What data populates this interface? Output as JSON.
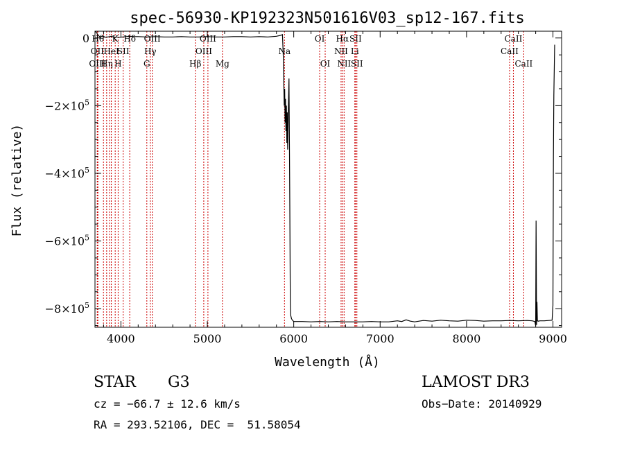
{
  "chart_data": {
    "type": "line",
    "title": "spec-56930-KP192323N501616V03_sp12-167.fits",
    "xlabel": "Wavelength (Å)",
    "ylabel": "Flux (relative)",
    "xlim": [
      3700,
      9100
    ],
    "ylim": [
      -855000,
      20000
    ],
    "x_ticks": [
      4000,
      5000,
      6000,
      7000,
      8000,
      9000
    ],
    "x_tick_labels": [
      "4000",
      "5000",
      "6000",
      "7000",
      "8000",
      "9000"
    ],
    "y_ticks": [
      0,
      -200000,
      -400000,
      -600000,
      -800000
    ],
    "y_tick_labels": [
      {
        "mant": "0",
        "exp": ""
      },
      {
        "mant": "−2×10",
        "exp": "5"
      },
      {
        "mant": "−4×10",
        "exp": "5"
      },
      {
        "mant": "−6×10",
        "exp": "5"
      },
      {
        "mant": "−8×10",
        "exp": "5"
      }
    ],
    "grid": false,
    "line_color": "#000000",
    "marker_color": "#cc0000",
    "series": [
      {
        "x": [
          3700,
          3710,
          3720,
          3735,
          3750,
          3760,
          3775,
          3790,
          3800,
          3815,
          3830,
          3850,
          3870,
          3890,
          3910,
          3930,
          3950,
          3980,
          4020,
          4060,
          4100,
          4150,
          4200,
          4300,
          4400,
          4500,
          4600,
          4700,
          4800,
          4900,
          5000,
          5100,
          5200,
          5300,
          5400,
          5500,
          5600,
          5700,
          5800,
          5850,
          5870,
          5880,
          5890,
          5895,
          5900,
          5905,
          5910,
          5915,
          5920,
          5925,
          5930,
          5935,
          5940,
          5945,
          5950,
          5955,
          5960,
          5965,
          5975,
          5985,
          6000,
          6100,
          6200,
          6300,
          6400,
          6500,
          6600,
          6700,
          6800,
          6900,
          7000,
          7100,
          7200,
          7250,
          7300,
          7350,
          7400,
          7500,
          7600,
          7700,
          7800,
          7900,
          8000,
          8100,
          8200,
          8300,
          8400,
          8500,
          8600,
          8700,
          8760,
          8790,
          8800,
          8805,
          8810,
          8815,
          8820,
          8830,
          8850,
          8900,
          8950,
          8990,
          9000,
          9005,
          9010,
          9020
        ],
        "y": [
          20000,
          18000,
          15000,
          8000,
          5000,
          3000,
          4000,
          6000,
          5000,
          2000,
          3000,
          3000,
          4000,
          5000,
          3000,
          2000,
          3000,
          2000,
          3000,
          4000,
          5000,
          4000,
          4000,
          3000,
          4000,
          3000,
          3000,
          4000,
          3000,
          3000,
          4000,
          3000,
          3000,
          4000,
          4000,
          3000,
          4000,
          3000,
          5000,
          8000,
          10000,
          -60000,
          -200000,
          -150000,
          -250000,
          -180000,
          -275000,
          -200000,
          -310000,
          -220000,
          -330000,
          -260000,
          -180000,
          -120000,
          -300000,
          -500000,
          -780000,
          -820000,
          -830000,
          -834000,
          -838000,
          -838000,
          -839000,
          -838000,
          -839000,
          -838000,
          -839000,
          -839000,
          -839000,
          -838000,
          -839000,
          -839000,
          -836000,
          -838000,
          -833000,
          -837000,
          -839000,
          -835000,
          -837000,
          -834000,
          -836000,
          -837000,
          -834000,
          -835000,
          -837000,
          -836000,
          -836000,
          -835000,
          -836000,
          -835000,
          -836000,
          -838000,
          -850000,
          -540000,
          -848000,
          -780000,
          -836000,
          -837000,
          -836000,
          -836000,
          -835000,
          -834000,
          -790000,
          -350000,
          -170000,
          -20000
        ]
      }
    ],
    "line_markers": [
      {
        "x": 3734,
        "label": "Hθ",
        "row": 0
      },
      {
        "x": 3727,
        "label": "OII",
        "row": 1
      },
      {
        "x": 3727,
        "label": "OIII",
        "row": 2
      },
      {
        "x": 3798,
        "label": "",
        "row": 0
      },
      {
        "x": 3835,
        "label": "Hη",
        "row": 2
      },
      {
        "x": 3869,
        "label": "",
        "row": 1
      },
      {
        "x": 3889,
        "label": "HeI",
        "row": 1
      },
      {
        "x": 3934,
        "label": "K",
        "row": 0
      },
      {
        "x": 3968,
        "label": "H",
        "row": 2
      },
      {
        "x": 4026,
        "label": "SII",
        "row": 1
      },
      {
        "x": 4102,
        "label": "Hδ",
        "row": 0
      },
      {
        "x": 4300,
        "label": "G",
        "row": 2
      },
      {
        "x": 4340,
        "label": "Hγ",
        "row": 1
      },
      {
        "x": 4363,
        "label": "OIII",
        "row": 0
      },
      {
        "x": 4861,
        "label": "Hβ",
        "row": 2
      },
      {
        "x": 4959,
        "label": "OIII",
        "row": 1
      },
      {
        "x": 5007,
        "label": "OIII",
        "row": 0
      },
      {
        "x": 5175,
        "label": "Mg",
        "row": 2
      },
      {
        "x": 5893,
        "label": "Na",
        "row": 1
      },
      {
        "x": 6300,
        "label": "OI",
        "row": 0
      },
      {
        "x": 6364,
        "label": "OI",
        "row": 2
      },
      {
        "x": 6548,
        "label": "NII",
        "row": 1
      },
      {
        "x": 6563,
        "label": "Hα",
        "row": 0
      },
      {
        "x": 6583,
        "label": "NII",
        "row": 2
      },
      {
        "x": 6707,
        "label": "Li",
        "row": 1
      },
      {
        "x": 6716,
        "label": "SII",
        "row": 0
      },
      {
        "x": 6731,
        "label": "SII",
        "row": 2
      },
      {
        "x": 8498,
        "label": "CaII",
        "row": 1
      },
      {
        "x": 8542,
        "label": "CaII",
        "row": 0
      },
      {
        "x": 8662,
        "label": "CaII",
        "row": 2
      }
    ]
  },
  "info": {
    "class": "STAR",
    "subclass": "G3",
    "survey": "LAMOST DR3",
    "cz": "cz = −66.7 ± 12.6 km/s",
    "obs_date": "Obs−Date: 20140929",
    "radec": "RA = 293.52106, DEC =  51.58054"
  }
}
